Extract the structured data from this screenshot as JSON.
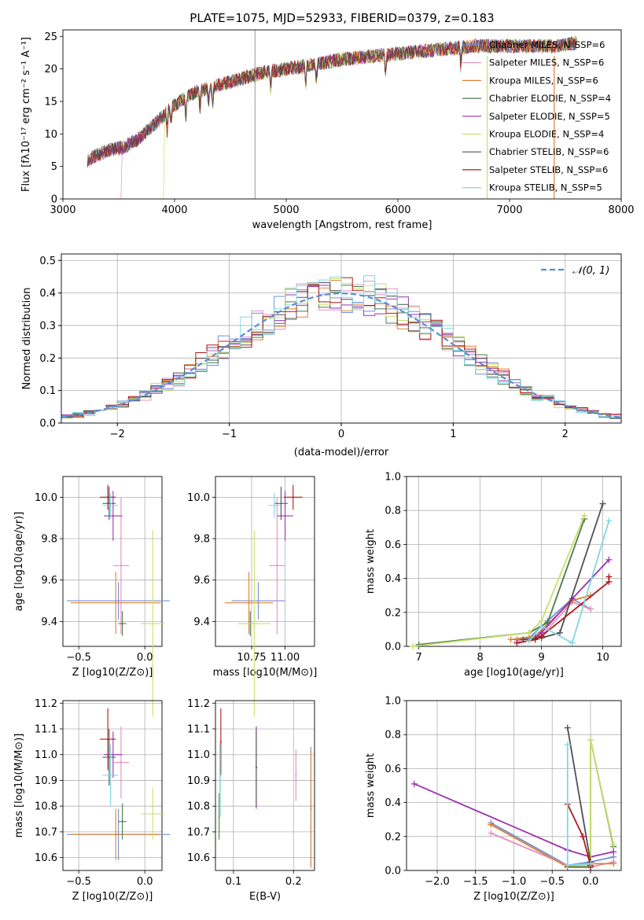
{
  "colors": {
    "Chabrier MILES": "#6f8fdc",
    "Salpeter MILES": "#e58fbf",
    "Kroupa MILES": "#e08030",
    "Chabrier ELODIE": "#4a7a4a",
    "Salpeter ELODIE": "#9b30b0",
    "Kroupa ELODIE": "#c8e06a",
    "Chabrier STELIB": "#505050",
    "Salpeter STELIB": "#b01818",
    "Kroupa STELIB": "#80d8e0"
  },
  "chart_data": [
    {
      "id": "spectrum",
      "type": "line",
      "title": "PLATE=1075, MJD=52933, FIBERID=0379, z=0.183",
      "xlabel": "wavelength [Angstrom, rest frame]",
      "ylabel": "Flux [fλ10⁻¹⁷ erg cm⁻² s⁻¹ A⁻¹]",
      "xlim": [
        3000,
        8000
      ],
      "ylim": [
        0,
        26
      ],
      "xticks": [
        3000,
        4000,
        5000,
        6000,
        7000,
        8000
      ],
      "yticks": [
        0,
        5,
        10,
        15,
        20,
        25
      ],
      "grid": false,
      "legend_position": "top-right",
      "series": [
        {
          "name": "Chabrier MILES, N_SSP=6"
        },
        {
          "name": "Salpeter MILES, N_SSP=6"
        },
        {
          "name": "Kroupa MILES, N_SSP=6"
        },
        {
          "name": "Chabrier ELODIE, N_SSP=4"
        },
        {
          "name": "Salpeter ELODIE, N_SSP=5"
        },
        {
          "name": "Kroupa ELODIE, N_SSP=4"
        },
        {
          "name": "Chabrier STELIB, N_SSP=6"
        },
        {
          "name": "Salpeter STELIB, N_SSP=6"
        },
        {
          "name": "Kroupa STELIB, N_SSP=5"
        }
      ],
      "continuum": [
        [
          3220,
          6
        ],
        [
          3400,
          7.5
        ],
        [
          3550,
          8
        ],
        [
          3700,
          9.5
        ],
        [
          3850,
          12
        ],
        [
          4000,
          14.5
        ],
        [
          4200,
          16.5
        ],
        [
          4400,
          17.5
        ],
        [
          4600,
          18.5
        ],
        [
          4800,
          19.5
        ],
        [
          5000,
          20
        ],
        [
          5200,
          20.5
        ],
        [
          5500,
          21.5
        ],
        [
          5800,
          22
        ],
        [
          6100,
          22.5
        ],
        [
          6400,
          23
        ],
        [
          6700,
          23.5
        ],
        [
          7000,
          23.5
        ],
        [
          7400,
          23.5
        ],
        [
          7600,
          24
        ]
      ]
    },
    {
      "id": "residuals",
      "type": "line",
      "xlabel": "(data-model)/error",
      "ylabel": "Normed distribution",
      "xlim": [
        -2.5,
        2.5
      ],
      "ylim": [
        0,
        0.52
      ],
      "xticks": [
        -2,
        -1,
        0,
        1,
        2
      ],
      "yticks": [
        0.0,
        0.1,
        0.2,
        0.3,
        0.4,
        0.5
      ],
      "grid": true,
      "legend_position": "top-right",
      "legend": "𝒩(0, 1)",
      "gaussian": {
        "mu": 0,
        "sigma": 1
      }
    },
    {
      "id": "age_vs_Z",
      "type": "scatter",
      "xlabel": "Z [log10(Z/Z⊙)]",
      "ylabel": "age  [log10(age/yr)]",
      "xlim": [
        -0.62,
        0.13
      ],
      "ylim": [
        9.28,
        10.1
      ],
      "xticks": [
        -0.5,
        0.0
      ],
      "yticks": [
        9.4,
        9.6,
        9.8,
        10.0
      ],
      "points": [
        {
          "model": "Chabrier MILES",
          "x": -0.2,
          "xerr": 0.39,
          "y": 9.5,
          "yerr": 0.09
        },
        {
          "model": "Salpeter MILES",
          "x": -0.18,
          "xerr": 0.06,
          "y": 9.67,
          "yerr": 0.33
        },
        {
          "model": "Kroupa MILES",
          "x": -0.22,
          "xerr": 0.34,
          "y": 9.49,
          "yerr": 0.15
        },
        {
          "model": "Chabrier ELODIE",
          "x": -0.17,
          "xerr": 0.03,
          "y": 9.39,
          "yerr": 0.06
        },
        {
          "model": "Salpeter ELODIE",
          "x": -0.24,
          "xerr": 0.07,
          "y": 9.91,
          "yerr": 0.12
        },
        {
          "model": "Kroupa ELODIE",
          "x": 0.06,
          "xerr": 0.09,
          "y": 9.39,
          "yerr": 0.45
        },
        {
          "model": "Chabrier STELIB",
          "x": -0.27,
          "xerr": 0.05,
          "y": 9.97,
          "yerr": 0.08
        },
        {
          "model": "Salpeter STELIB",
          "x": -0.28,
          "xerr": 0.06,
          "y": 10.0,
          "yerr": 0.06
        },
        {
          "model": "Kroupa STELIB",
          "x": -0.26,
          "xerr": 0.06,
          "y": 9.96,
          "yerr": 0.06
        }
      ]
    },
    {
      "id": "age_vs_mass",
      "type": "scatter",
      "xlabel": "mass [log10(M/M⊙)]",
      "ylim": [
        9.28,
        10.1
      ],
      "xlim": [
        10.48,
        11.22
      ],
      "xticks": [
        10.75,
        11.0
      ],
      "yticks": [
        9.4,
        9.6,
        9.8,
        10.0
      ],
      "points": [
        {
          "model": "Chabrier MILES",
          "x": 10.8,
          "xerr": 0.2,
          "y": 9.5,
          "yerr": 0.09
        },
        {
          "model": "Salpeter MILES",
          "x": 10.94,
          "xerr": 0.06,
          "y": 9.67,
          "yerr": 0.33
        },
        {
          "model": "Kroupa MILES",
          "x": 10.73,
          "xerr": 0.18,
          "y": 9.49,
          "yerr": 0.15
        },
        {
          "model": "Chabrier ELODIE",
          "x": 10.74,
          "xerr": 0.02,
          "y": 9.39,
          "yerr": 0.06
        },
        {
          "model": "Salpeter ELODIE",
          "x": 11.0,
          "xerr": 0.06,
          "y": 9.91,
          "yerr": 0.12
        },
        {
          "model": "Kroupa ELODIE",
          "x": 10.77,
          "xerr": 0.12,
          "y": 9.39,
          "yerr": 0.45
        },
        {
          "model": "Chabrier STELIB",
          "x": 10.97,
          "xerr": 0.05,
          "y": 9.97,
          "yerr": 0.08
        },
        {
          "model": "Salpeter STELIB",
          "x": 11.06,
          "xerr": 0.07,
          "y": 10.0,
          "yerr": 0.06
        },
        {
          "model": "Kroupa STELIB",
          "x": 10.92,
          "xerr": 0.05,
          "y": 9.96,
          "yerr": 0.06
        }
      ]
    },
    {
      "id": "weight_vs_age",
      "type": "line",
      "xlabel": "age  [log10(age/yr)]",
      "ylabel": "mass weight",
      "xlim": [
        6.8,
        10.3
      ],
      "ylim": [
        0,
        1.0
      ],
      "xticks": [
        7,
        8,
        9,
        10
      ],
      "yticks": [
        0.0,
        0.2,
        0.4,
        0.6,
        0.8,
        1.0
      ],
      "grid": true,
      "series": [
        {
          "model": "Chabrier MILES",
          "points": [
            [
              8.6,
              0.04
            ],
            [
              8.8,
              0.05
            ],
            [
              9.1,
              0.15
            ],
            [
              9.5,
              0.28
            ],
            [
              9.8,
              0.22
            ]
          ]
        },
        {
          "model": "Salpeter MILES",
          "points": [
            [
              8.6,
              0.03
            ],
            [
              9.0,
              0.06
            ],
            [
              9.5,
              0.26
            ],
            [
              9.8,
              0.22
            ]
          ]
        },
        {
          "model": "Kroupa MILES",
          "points": [
            [
              8.5,
              0.04
            ],
            [
              8.9,
              0.06
            ],
            [
              9.5,
              0.27
            ],
            [
              9.8,
              0.3
            ]
          ]
        },
        {
          "model": "Chabrier ELODIE",
          "points": [
            [
              7.0,
              0.01
            ],
            [
              8.8,
              0.08
            ],
            [
              9.1,
              0.14
            ],
            [
              9.7,
              0.75
            ]
          ]
        },
        {
          "model": "Salpeter ELODIE",
          "points": [
            [
              8.9,
              0.05
            ],
            [
              9.0,
              0.08
            ],
            [
              9.5,
              0.28
            ],
            [
              10.1,
              0.51
            ]
          ]
        },
        {
          "model": "Kroupa ELODIE",
          "points": [
            [
              6.9,
              0.0
            ],
            [
              8.8,
              0.08
            ],
            [
              9.0,
              0.15
            ],
            [
              9.7,
              0.77
            ]
          ]
        },
        {
          "model": "Chabrier STELIB",
          "points": [
            [
              8.7,
              0.04
            ],
            [
              9.0,
              0.05
            ],
            [
              9.3,
              0.08
            ],
            [
              10.0,
              0.84
            ]
          ]
        },
        {
          "model": "Salpeter STELIB",
          "points": [
            [
              8.6,
              0.02
            ],
            [
              8.9,
              0.04
            ],
            [
              9.0,
              0.06
            ],
            [
              10.1,
              0.38
            ],
            [
              10.1,
              0.41
            ]
          ]
        },
        {
          "model": "Kroupa STELIB",
          "points": [
            [
              8.8,
              0.03
            ],
            [
              9.0,
              0.12
            ],
            [
              9.5,
              0.02
            ],
            [
              10.1,
              0.74
            ]
          ]
        }
      ]
    },
    {
      "id": "mass_vs_Z",
      "type": "scatter",
      "xlabel": "Z [log10(Z/Z⊙)]",
      "ylabel": "mass [log10(M/M⊙)]",
      "xlim": [
        -0.62,
        0.13
      ],
      "ylim": [
        10.55,
        11.21
      ],
      "xticks": [
        -0.5,
        0.0
      ],
      "yticks": [
        10.6,
        10.7,
        10.8,
        10.9,
        11.0,
        11.1,
        11.2
      ],
      "points": [
        {
          "model": "Chabrier MILES",
          "x": -0.2,
          "xerr": 0.39,
          "y": 10.69,
          "yerr": 0.1
        },
        {
          "model": "Salpeter MILES",
          "x": -0.18,
          "xerr": 0.06,
          "y": 10.97,
          "yerr": 0.14
        },
        {
          "model": "Kroupa MILES",
          "x": -0.22,
          "xerr": 0.34,
          "y": 10.69,
          "yerr": 0.1
        },
        {
          "model": "Chabrier ELODIE",
          "x": -0.17,
          "xerr": 0.03,
          "y": 10.74,
          "yerr": 0.07
        },
        {
          "model": "Salpeter ELODIE",
          "x": -0.24,
          "xerr": 0.07,
          "y": 11.0,
          "yerr": 0.09
        },
        {
          "model": "Kroupa ELODIE",
          "x": 0.06,
          "xerr": 0.09,
          "y": 10.77,
          "yerr": 0.1
        },
        {
          "model": "Chabrier STELIB",
          "x": -0.27,
          "xerr": 0.05,
          "y": 10.99,
          "yerr": 0.11
        },
        {
          "model": "Salpeter STELIB",
          "x": -0.28,
          "xerr": 0.06,
          "y": 11.06,
          "yerr": 0.12
        },
        {
          "model": "Kroupa STELIB",
          "x": -0.26,
          "xerr": 0.06,
          "y": 10.92,
          "yerr": 0.12
        }
      ]
    },
    {
      "id": "mass_vs_ebv",
      "type": "scatter",
      "xlabel": "E(B-V)",
      "xlim": [
        0.07,
        0.235
      ],
      "ylim": [
        10.55,
        11.21
      ],
      "xticks": [
        0.1,
        0.2
      ],
      "yticks": [
        10.6,
        10.7,
        10.8,
        10.9,
        11.0,
        11.1,
        11.2
      ],
      "points": [
        {
          "model": "Chabrier MILES",
          "x": 0.229,
          "y": 10.8,
          "yerr": 0.23
        },
        {
          "model": "Salpeter MILES",
          "x": 0.204,
          "y": 10.92,
          "yerr": 0.1
        },
        {
          "model": "Kroupa MILES",
          "x": 0.229,
          "y": 10.79,
          "yerr": 0.23
        },
        {
          "model": "Chabrier ELODIE",
          "x": 0.076,
          "y": 10.76,
          "yerr": 0.09
        },
        {
          "model": "Salpeter ELODIE",
          "x": 0.138,
          "y": 10.95,
          "yerr": 0.16
        },
        {
          "model": "Kroupa ELODIE",
          "x": 0.077,
          "y": 10.88,
          "yerr": 0.17
        },
        {
          "model": "Chabrier STELIB",
          "x": 0.138,
          "y": 10.95,
          "yerr": 0.15
        },
        {
          "model": "Salpeter STELIB",
          "x": 0.079,
          "y": 11.05,
          "yerr": 0.13
        },
        {
          "model": "Kroupa STELIB",
          "x": 0.078,
          "y": 10.9,
          "yerr": 0.14
        }
      ]
    },
    {
      "id": "weight_vs_Z",
      "type": "line",
      "xlabel": "Z [log10(Z/Z⊙)]",
      "ylabel": "mass weight",
      "xlim": [
        -2.4,
        0.4
      ],
      "ylim": [
        0,
        1.0
      ],
      "xticks": [
        -2.0,
        -1.5,
        -1.0,
        -0.5,
        0.0
      ],
      "yticks": [
        0.0,
        0.2,
        0.4,
        0.6,
        0.8,
        1.0
      ],
      "grid": true,
      "series": [
        {
          "model": "Chabrier MILES",
          "points": [
            [
              -1.3,
              0.28
            ],
            [
              -0.3,
              0.03
            ],
            [
              0.0,
              0.05
            ],
            [
              0.3,
              0.08
            ]
          ]
        },
        {
          "model": "Salpeter MILES",
          "points": [
            [
              -1.3,
              0.22
            ],
            [
              -0.3,
              0.03
            ],
            [
              0.0,
              0.02
            ],
            [
              0.3,
              0.05
            ]
          ]
        },
        {
          "model": "Kroupa MILES",
          "points": [
            [
              -1.3,
              0.27
            ],
            [
              -0.3,
              0.02
            ],
            [
              0.0,
              0.04
            ],
            [
              0.3,
              0.04
            ]
          ]
        },
        {
          "model": "Chabrier ELODIE",
          "points": [
            [
              -0.3,
              0.02
            ],
            [
              0.0,
              0.02
            ],
            [
              0.0,
              0.77
            ],
            [
              0.3,
              0.14
            ]
          ]
        },
        {
          "model": "Salpeter ELODIE",
          "points": [
            [
              -2.3,
              0.51
            ],
            [
              -0.3,
              0.12
            ],
            [
              0.0,
              0.08
            ],
            [
              0.3,
              0.11
            ]
          ]
        },
        {
          "model": "Kroupa ELODIE",
          "points": [
            [
              -0.3,
              0.03
            ],
            [
              0.0,
              0.03
            ],
            [
              0.0,
              0.77
            ],
            [
              0.3,
              0.15
            ]
          ]
        },
        {
          "model": "Chabrier STELIB",
          "points": [
            [
              -0.3,
              0.84
            ],
            [
              0.0,
              0.05
            ],
            [
              0.0,
              0.04
            ]
          ]
        },
        {
          "model": "Salpeter STELIB",
          "points": [
            [
              -0.3,
              0.39
            ],
            [
              -0.1,
              0.2
            ],
            [
              0.0,
              0.03
            ],
            [
              0.0,
              0.02
            ]
          ]
        },
        {
          "model": "Kroupa STELIB",
          "points": [
            [
              -0.3,
              0.74
            ],
            [
              -0.3,
              0.03
            ],
            [
              0.0,
              0.04
            ]
          ]
        }
      ]
    }
  ]
}
